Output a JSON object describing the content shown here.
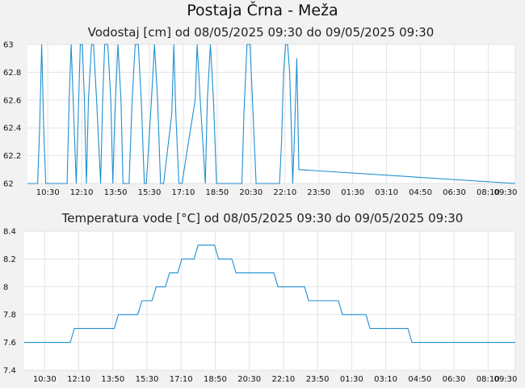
{
  "page": {
    "title": "Postaja Črna - Meža"
  },
  "chart_data": [
    {
      "type": "line",
      "title": "Vodostaj [cm] od 08/05/2025 09:30 do 09/05/2025 09:30",
      "xlabel": "",
      "ylabel": "",
      "ylim": [
        62,
        63
      ],
      "yticks": [
        "62",
        "62.2",
        "62.4",
        "62.6",
        "62.8",
        "63"
      ],
      "xticks": [
        "10:30",
        "12:10",
        "13:50",
        "15:30",
        "17:10",
        "18:50",
        "20:30",
        "22:10",
        "23:50",
        "01:30",
        "03:10",
        "04:50",
        "06:30",
        "08:10",
        "09:30"
      ],
      "x_unit": "hours since 08/05/2025 09:30",
      "grid": true,
      "line_color": "#1f8fd0",
      "series": [
        {
          "name": "",
          "x": [
            0,
            0.5,
            0.6,
            0.7,
            0.8,
            0.9,
            1.95,
            2.05,
            2.15,
            2.25,
            2.4,
            2.5,
            2.6,
            2.7,
            2.8,
            2.9,
            3.0,
            3.15,
            3.25,
            3.4,
            3.6,
            3.7,
            3.8,
            3.95,
            4.1,
            4.2,
            4.3,
            4.45,
            4.6,
            4.7,
            5.0,
            5.15,
            5.3,
            5.45,
            5.6,
            5.75,
            5.85,
            6.1,
            6.25,
            6.4,
            6.55,
            6.7,
            7.1,
            7.2,
            7.3,
            7.45,
            7.6,
            8.25,
            8.35,
            8.5,
            8.75,
            8.85,
            9.0,
            9.15,
            9.3,
            10.55,
            10.65,
            10.8,
            10.95,
            11.1,
            11.25,
            12.4,
            12.5,
            12.6,
            12.7,
            12.8,
            12.9,
            13.0,
            13.05,
            13.15,
            13.25,
            13.35,
            24.0
          ],
          "y": [
            62,
            62,
            62.4,
            63,
            62.4,
            62,
            62,
            62.6,
            63,
            62.6,
            62,
            62.5,
            63,
            63,
            62.6,
            62,
            62.6,
            63,
            63,
            62.6,
            62,
            62.6,
            63,
            63,
            62.6,
            62,
            62.5,
            63,
            62.6,
            62,
            62,
            62.6,
            63,
            63,
            62.6,
            62,
            62,
            62.6,
            63,
            62.6,
            62,
            62,
            62.5,
            63,
            62.5,
            62,
            62,
            62.6,
            63,
            62.6,
            62,
            62.6,
            63,
            62.6,
            62,
            62,
            62.5,
            63,
            63,
            62.5,
            62,
            62,
            62.3,
            62.8,
            63,
            63,
            62.8,
            62.3,
            62,
            62.4,
            62.9,
            62.1,
            62
          ]
        }
      ]
    },
    {
      "type": "line",
      "title": "Temperatura vode [°C] od 08/05/2025 09:30 do 09/05/2025 09:30",
      "xlabel": "",
      "ylabel": "",
      "ylim": [
        7.4,
        8.4
      ],
      "yticks": [
        "7.4",
        "7.6",
        "7.8",
        "8",
        "8.2",
        "8.4"
      ],
      "xticks": [
        "10:30",
        "12:10",
        "13:50",
        "15:30",
        "17:10",
        "18:50",
        "20:30",
        "22:10",
        "23:50",
        "01:30",
        "03:10",
        "04:50",
        "06:30",
        "08:10",
        "09:30"
      ],
      "x_unit": "hours since 08/05/2025 09:30",
      "grid": true,
      "line_color": "#1f8fd0",
      "series": [
        {
          "name": "",
          "x": [
            0,
            2.25,
            2.45,
            4.4,
            4.6,
            5.55,
            5.75,
            6.25,
            6.45,
            6.9,
            7.1,
            7.5,
            7.7,
            8.3,
            8.5,
            9.3,
            9.5,
            10.15,
            10.35,
            12.2,
            12.4,
            13.7,
            13.9,
            15.35,
            15.55,
            16.7,
            16.9,
            18.75,
            18.95,
            21.0,
            21.2,
            22.35,
            22.55,
            24.0
          ],
          "y": [
            7.6,
            7.6,
            7.7,
            7.7,
            7.8,
            7.8,
            7.9,
            7.9,
            8.0,
            8.0,
            8.1,
            8.1,
            8.2,
            8.2,
            8.3,
            8.3,
            8.2,
            8.2,
            8.1,
            8.1,
            8.0,
            8.0,
            7.9,
            7.9,
            7.8,
            7.8,
            7.7,
            7.7,
            7.6,
            7.6,
            7.6,
            7.6,
            7.6,
            7.6
          ]
        }
      ]
    }
  ]
}
